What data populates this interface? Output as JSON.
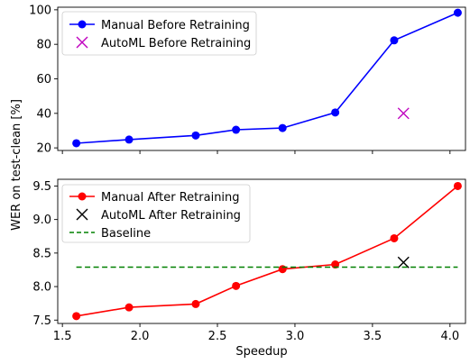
{
  "chart_data": [
    {
      "type": "line",
      "title": "",
      "xlabel": "",
      "ylabel": "WER on test-clean [%]",
      "xlim": [
        1.47,
        4.1
      ],
      "ylim": [
        18.5,
        101.5
      ],
      "xticks": [
        "1.5",
        "2.0",
        "2.5",
        "3.0",
        "3.5",
        "4.0"
      ],
      "xtick_labels_visible": false,
      "yticks": [
        "20",
        "40",
        "60",
        "80",
        "100"
      ],
      "ytick_values": [
        20,
        40,
        60,
        80,
        100
      ],
      "legend": "top-left",
      "grid": false,
      "series": [
        {
          "name": "Manual Before Retraining",
          "color": "#0000ff",
          "style": "line-marker",
          "marker": "circle",
          "x": [
            1.59,
            1.93,
            2.36,
            2.62,
            2.92,
            3.26,
            3.64,
            4.05
          ],
          "values": [
            22.7,
            24.8,
            27.2,
            30.5,
            31.5,
            40.5,
            82.3,
            98.3
          ]
        },
        {
          "name": "AutoML Before Retraining",
          "color": "#bf00bf",
          "style": "marker",
          "marker": "x",
          "x": [
            3.7
          ],
          "values": [
            40.0
          ]
        }
      ]
    },
    {
      "type": "line",
      "title": "",
      "xlabel": "Speedup",
      "ylabel": "",
      "xlim": [
        1.47,
        4.1
      ],
      "ylim": [
        7.45,
        9.6
      ],
      "xticks": [
        "1.5",
        "2.0",
        "2.5",
        "3.0",
        "3.5",
        "4.0"
      ],
      "xtick_values": [
        1.5,
        2.0,
        2.5,
        3.0,
        3.5,
        4.0
      ],
      "yticks": [
        "7.5",
        "8.0",
        "8.5",
        "9.0",
        "9.5"
      ],
      "ytick_values": [
        7.5,
        8.0,
        8.5,
        9.0,
        9.5
      ],
      "legend": "top-left",
      "grid": false,
      "series": [
        {
          "name": "Manual After Retraining",
          "color": "#ff0000",
          "style": "line-marker",
          "marker": "circle",
          "x": [
            1.59,
            1.93,
            2.36,
            2.62,
            2.92,
            3.26,
            3.64,
            4.05
          ],
          "values": [
            7.56,
            7.69,
            7.74,
            8.01,
            8.26,
            8.33,
            8.72,
            9.5
          ]
        },
        {
          "name": "AutoML After Retraining",
          "color": "#000000",
          "style": "marker",
          "marker": "x",
          "x": [
            3.7
          ],
          "values": [
            8.36
          ]
        },
        {
          "name": "Baseline",
          "color": "#008000",
          "style": "dashed",
          "x": [
            1.59,
            4.05
          ],
          "values": [
            8.29,
            8.29
          ]
        }
      ]
    }
  ]
}
